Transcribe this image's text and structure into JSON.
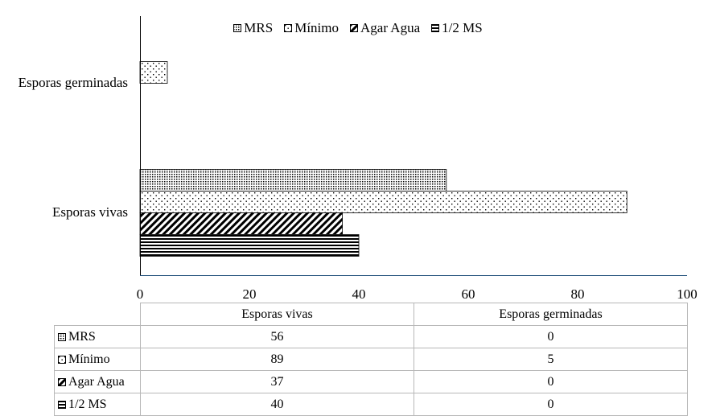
{
  "chart_data": {
    "type": "bar",
    "orientation": "horizontal",
    "categories": [
      "Esporas vivas",
      "Esporas germinadas"
    ],
    "series": [
      {
        "name": "MRS",
        "values": [
          56,
          0
        ],
        "pattern": "dense-dots"
      },
      {
        "name": "Mínimo",
        "values": [
          89,
          5
        ],
        "pattern": "sparse-dots"
      },
      {
        "name": "Agar Agua",
        "values": [
          37,
          0
        ],
        "pattern": "diagonal-hatch"
      },
      {
        "name": "1/2 MS",
        "values": [
          40,
          0
        ],
        "pattern": "horizontal-lines"
      }
    ],
    "xlim": [
      0,
      100
    ],
    "x_ticks": [
      "0",
      "20",
      "40",
      "60",
      "80",
      "100"
    ],
    "legend_position": "top",
    "data_table": true,
    "grid": false,
    "title": "",
    "xlabel": "",
    "ylabel": ""
  },
  "table": {
    "headers": [
      "Esporas vivas",
      "Esporas germinadas"
    ]
  }
}
